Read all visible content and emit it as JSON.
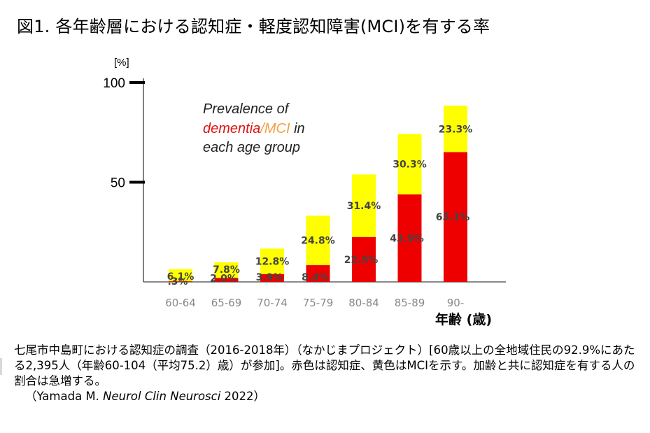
{
  "title": "図1. 各年齢層における認知症・軽度認知障害(MCI)を有する率",
  "chart_data": {
    "type": "bar",
    "stacked": true,
    "y_unit_label": "[%]",
    "categories": [
      "60-64",
      "65-69",
      "70-74",
      "75-79",
      "80-84",
      "85-89",
      "90-"
    ],
    "xlabel": "年齢 (歳)",
    "ylim": [
      0,
      100
    ],
    "yticks": [
      "50",
      "100"
    ],
    "grid": false,
    "series": [
      {
        "key": "dementia",
        "color": "#ee0000",
        "values": [
          0.3,
          2.0,
          3.9,
          8.4,
          22.5,
          43.9,
          65.1
        ],
        "labels": [
          ".3%",
          "2.0%",
          "3.9%",
          "8.4%",
          "22.5%",
          "43.9%",
          "65.1%"
        ]
      },
      {
        "key": "mci",
        "color": "#ffff00",
        "values": [
          6.1,
          7.8,
          12.8,
          24.8,
          31.4,
          30.3,
          23.3
        ],
        "labels": [
          "6.1%",
          "7.8%",
          "12.8%",
          "24.8%",
          "31.4%",
          "30.3%",
          "23.3%"
        ]
      }
    ],
    "annotation": {
      "line1": "Prevalence of",
      "dementia": "dementia",
      "slash": "/",
      "mci": "MCI",
      "in": " in",
      "line3": "each age group",
      "dementia_color": "#dd1111",
      "mci_color": "#f0a040"
    }
  },
  "caption": {
    "text": "七尾市中島町における認知症の調査（2016-2018年）（なかじまプロジェクト）[60歳以上の全地域住民の92.9%にあたる2,395人（年齢60-104（平均75.2）歳）が参加]。赤色は認知症、黄色はMCIを示す。加齢と共に認知症を有する人の割合は急増する。",
    "cite_open": "（Yamada M. ",
    "cite_journal": "Neurol Clin Neurosci",
    "cite_close": " 2022）"
  }
}
